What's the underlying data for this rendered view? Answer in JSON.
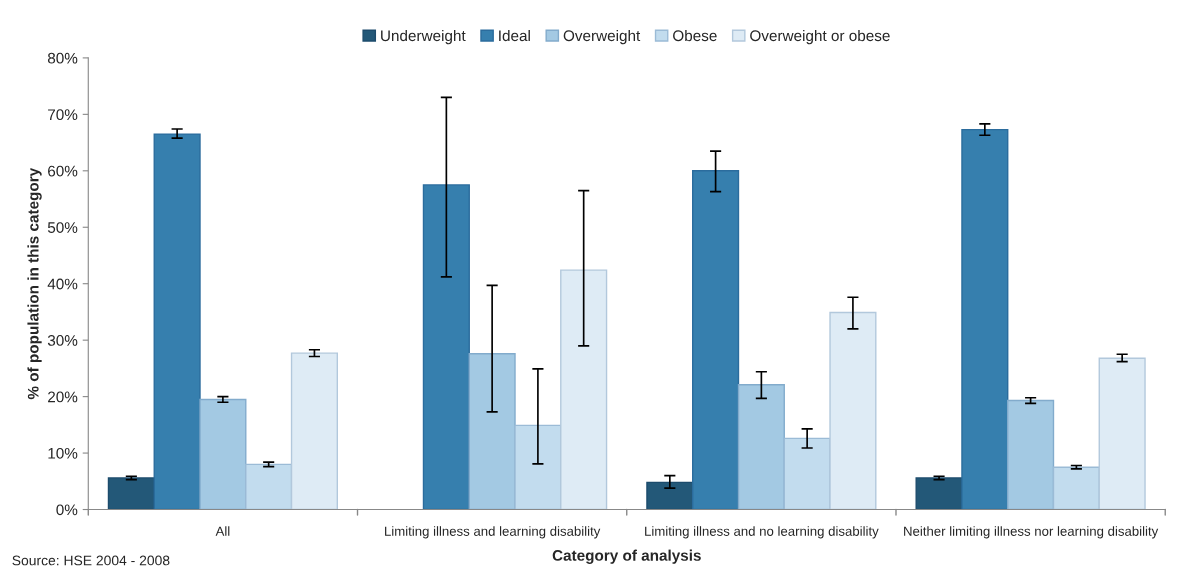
{
  "chart_data": {
    "type": "bar",
    "xlabel": "Category of analysis",
    "ylabel": "% of population in this category",
    "categories": [
      "All",
      "Limiting illness and learning disability",
      "Limiting illness and no learning disability",
      "Neither limiting illness nor learning disability"
    ],
    "series": [
      {
        "name": "Underweight",
        "color": "#235878",
        "values": [
          5.6,
          null,
          4.8,
          5.6
        ],
        "errors": [
          [
            5.3,
            5.9
          ],
          null,
          [
            3.8,
            6.0
          ],
          [
            5.3,
            5.9
          ]
        ]
      },
      {
        "name": "Ideal",
        "color": "#367fae",
        "values": [
          66.5,
          57.5,
          60.0,
          67.3
        ],
        "errors": [
          [
            65.8,
            67.4
          ],
          [
            41.2,
            73.0
          ],
          [
            56.3,
            63.5
          ],
          [
            66.3,
            68.3
          ]
        ]
      },
      {
        "name": "Overweight",
        "color": "#a3c9e3",
        "values": [
          19.5,
          27.6,
          22.1,
          19.3
        ],
        "errors": [
          [
            19.0,
            20.0
          ],
          [
            17.3,
            39.7
          ],
          [
            19.7,
            24.4
          ],
          [
            18.8,
            19.8
          ]
        ]
      },
      {
        "name": "Obese",
        "color": "#c2dcee",
        "values": [
          8.0,
          14.9,
          12.6,
          7.5
        ],
        "errors": [
          [
            7.6,
            8.4
          ],
          [
            8.1,
            24.9
          ],
          [
            10.9,
            14.3
          ],
          [
            7.2,
            7.8
          ]
        ]
      },
      {
        "name": "Overweight or obese",
        "color": "#deebf5",
        "values": [
          27.7,
          42.4,
          34.9,
          26.8
        ],
        "errors": [
          [
            27.1,
            28.3
          ],
          [
            29.0,
            56.5
          ],
          [
            32.0,
            37.6
          ],
          [
            26.2,
            27.5
          ]
        ]
      }
    ],
    "ylim": [
      0,
      80
    ],
    "yticks": [
      {
        "value": 0,
        "label": "0%"
      },
      {
        "value": 10,
        "label": "10%"
      },
      {
        "value": 20,
        "label": "20%"
      },
      {
        "value": 30,
        "label": "30%"
      },
      {
        "value": 40,
        "label": "40%"
      },
      {
        "value": 50,
        "label": "50%"
      },
      {
        "value": 60,
        "label": "60%"
      },
      {
        "value": 70,
        "label": "70%"
      },
      {
        "value": 80,
        "label": "80%"
      }
    ],
    "legend": "top",
    "grid": false,
    "annotations": [
      "Source: HSE 2004 - 2008"
    ]
  }
}
